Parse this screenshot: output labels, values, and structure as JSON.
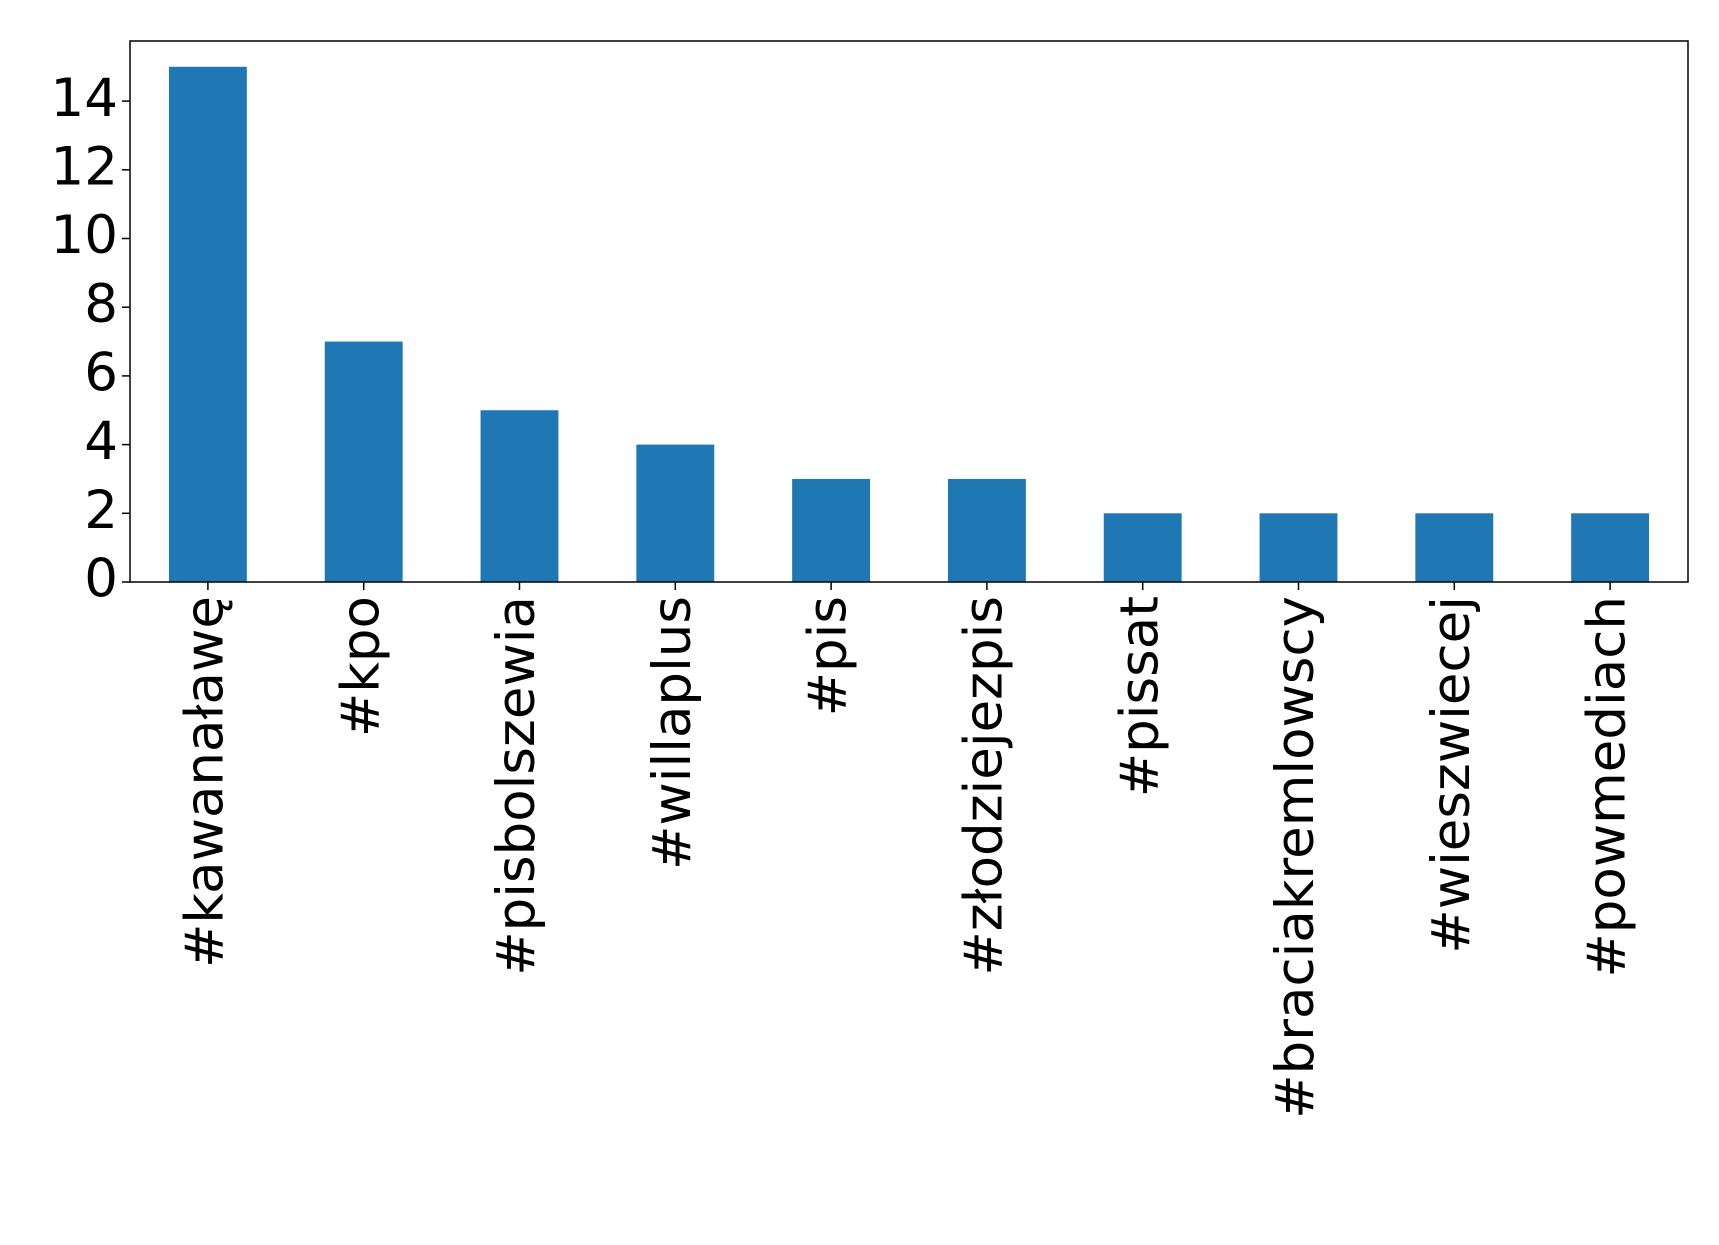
{
  "chart_data": {
    "type": "bar",
    "categories": [
      "#kawanaławę",
      "#kpo",
      "#pisbolszewia",
      "#willaplus",
      "#pis",
      "#złodziejezpis",
      "#pissat",
      "#braciakremlowscy",
      "#wieszwiecej",
      "#powmediach"
    ],
    "values": [
      15,
      7,
      5,
      4,
      3,
      3,
      2,
      2,
      2,
      2
    ],
    "color": "#1f77b4",
    "ylim": [
      0,
      15.75
    ],
    "yticks": [
      0,
      2,
      4,
      6,
      8,
      10,
      12,
      14
    ],
    "grid": false
  }
}
